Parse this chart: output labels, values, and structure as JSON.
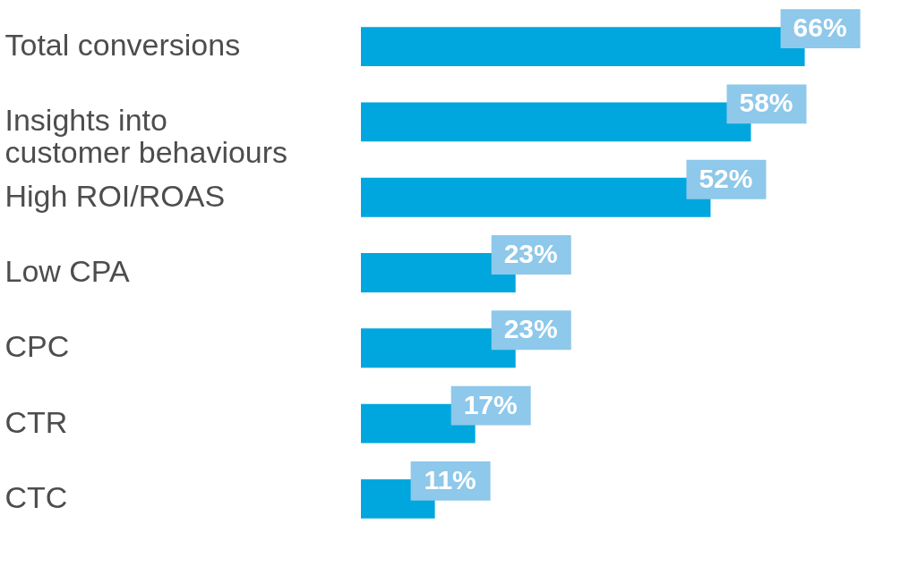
{
  "chart_data": {
    "type": "bar",
    "orientation": "horizontal",
    "categories": [
      "Total conversions",
      "Insights into\ncustomer behaviours",
      "High ROI/ROAS",
      "Low CPA",
      "CPC",
      "CTR",
      "CTC"
    ],
    "values": [
      66,
      58,
      52,
      23,
      23,
      17,
      11
    ],
    "value_labels": [
      "66%",
      "58%",
      "52%",
      "23%",
      "23%",
      "17%",
      "11%"
    ],
    "color": "#00a6de",
    "grid": false
  }
}
